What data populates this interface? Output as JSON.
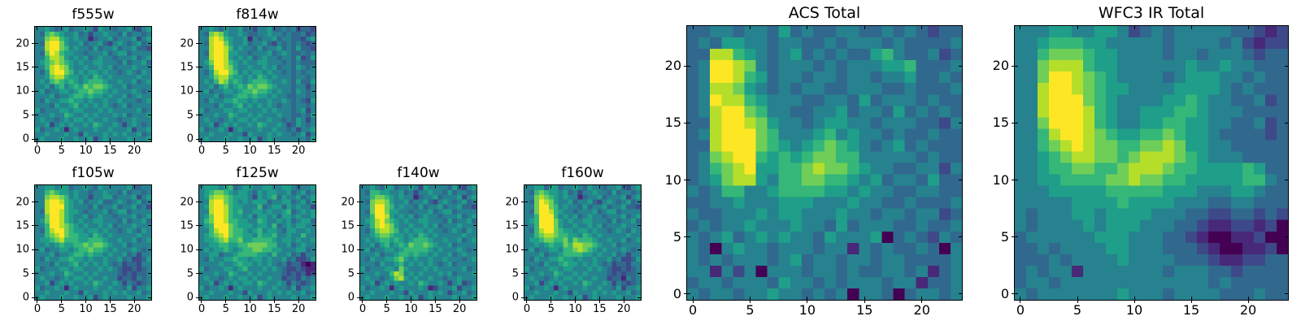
{
  "figure": {
    "background_color": "#ffffff",
    "frame_color": "#000000"
  },
  "chart_data": {
    "type": "heatmap",
    "colormap": "viridis",
    "colormap_colors": [
      "#440154",
      "#482878",
      "#3e4989",
      "#31688e",
      "#26828e",
      "#1f9e89",
      "#35b779",
      "#6ece58",
      "#b5de2b",
      "#fde725"
    ],
    "value_encoding": "each character 0-9 per cell indexes colormap_colors (relative surface brightness)",
    "grid_size": 24,
    "extent": [
      -0.5,
      23.5
    ],
    "xticks": [
      0,
      5,
      10,
      15,
      20
    ],
    "yticks": [
      0,
      5,
      10,
      15,
      20
    ],
    "grid": false,
    "panels": [
      {
        "id": "f555w",
        "title": "f555w",
        "rows": [
          "445434534454254434453245",
          "436765445342445443534434",
          "447886545441344534445245",
          "438997544534453245434534",
          "448997645443534453445332",
          "437986554434445345534444",
          "446887545453454434445345",
          "456787654544554443534453",
          "446898754454454534445444",
          "435899764545545443454354",
          "445788655454654544444544",
          "454676565456665445445345",
          "445356456576776544534444",
          "453445545667665454445434",
          "444534456656554544534544",
          "435445565545445445444345",
          "444354456454545434534444",
          "534445545544454544444534",
          "444544654454544454534445",
          "454434545545445443445444",
          "445245454454654454245434",
          "534454145444544544452445",
          "445444544254445454544534",
          "454445445445245444454445"
        ]
      },
      {
        "id": "f814w",
        "title": "f814w",
        "rows": [
          "445435445342445334342332",
          "437875445433445443433423",
          "448986544514344534433245",
          "438997544534453243434323",
          "448998645443534453435332",
          "438998554434445345433434",
          "448998545453454434435235",
          "457998654544554443434333",
          "446998754454454534435434",
          "435899764545545443434344",
          "445788655454654544434434",
          "454687565456665445435335",
          "445356456576776544434424",
          "453445545667665454435434",
          "444534456656554544334434",
          "435445565545445445434325",
          "444354456454545434434434",
          "534445545544454544434524",
          "444544654454544454433435",
          "454434545545445443435424",
          "445245454454654454235434",
          "534454145444544544342445",
          "445444544254445454434524",
          "454445445445245444444435"
        ]
      },
      {
        "id": "f105w",
        "title": "f105w",
        "rows": [
          "445545534454354444453344",
          "446765545443445443534434",
          "447887645442445534445245",
          "448998654534453345434534",
          "448999654443534453445342",
          "438998655434445345534444",
          "447998654453454434445345",
          "457998654544554443534453",
          "446998765454454534445444",
          "436899765545545443454354",
          "446789766554654544444544",
          "455678666556665445445345",
          "445456556676776544534444",
          "453445545667665454445434",
          "444534456656554544534244",
          "435445565545445445342235",
          "444354456454545434233244",
          "534445545544454543223234",
          "444544654454544443232334",
          "454434545545445442332434",
          "445245454454654454243234",
          "534454145444544544352445",
          "445444544254445454544534",
          "454445445445245444454445"
        ]
      },
      {
        "id": "f125w",
        "title": "f125w",
        "rows": [
          "455545634554455445543445",
          "456776545543545544534534",
          "457887655542545635445345",
          "448997654545553445534535",
          "458998655444634553545442",
          "448998656445545445634545",
          "457998655453554535545445",
          "467998665544654454534553",
          "456999765554554634545544",
          "446899766545645543554454",
          "456789766554655644544644",
          "455678667556666545545445",
          "445566556677776644534544",
          "454556545667766554445534",
          "445534456666554644534244",
          "435445565545545445342235",
          "444454456554545434233101",
          "534445545644454543223211",
          "444544654454544443232312",
          "454434545545445442332434",
          "445245454554654454243234",
          "534454145444544544352445",
          "445444544254445454544534",
          "454445445445245444454445"
        ]
      },
      {
        "id": "f140w",
        "title": "f140w",
        "rows": [
          "445435534454254444353245",
          "436655445342445443534434",
          "446776545441344534445245",
          "437887544534453245434534",
          "447997645443534453445332",
          "437997554434445345534444",
          "446998545453454434445345",
          "456897654544554443534453",
          "446898754454454534445444",
          "435788764545545443454354",
          "445677655454654544444544",
          "454566565456665445445345",
          "445356456576676544534444",
          "453445545666665454445434",
          "444534456656554544534544",
          "435445567545445445444345",
          "444354456454545434534444",
          "534445547544454544444534",
          "444544687454544454534445",
          "454434578545445443445444",
          "445245454454654454245234",
          "534454145444541244452445",
          "445444544254445454244534",
          "454445445445245444454445"
        ]
      },
      {
        "id": "f160w",
        "title": "f160w",
        "rows": [
          "445535534454354434453245",
          "436765545342445443534434",
          "447876545441344534445245",
          "437987544534453245434534",
          "447997645443534453445332",
          "437998654434445345534444",
          "446999645453454434445345",
          "456999754544554443534453",
          "446999754454454534445444",
          "436899765545545443454354",
          "446788766554654544444544",
          "455677667576665445445345",
          "445456557688776544534444",
          "453445546678765454445434",
          "444534456666554544534244",
          "435445565545445445342235",
          "444354456554545434233244",
          "534445545544454543223234",
          "444544654454544443232334",
          "454434545545445442331434",
          "445245454454654454243234",
          "534454145444544544352445",
          "445444544254445454544534",
          "454445445445245444454445"
        ]
      },
      {
        "id": "acs_total",
        "title": "ACS Total",
        "rows": [
          "334434435343344334343233",
          "343554434433434443433334",
          "338865434534343356433423",
          "349987434443434445563334",
          "349986534434434434453343",
          "348875434344334443343334",
          "349886544433443534443433",
          "348997644334453443534343",
          "338998754434554434443324",
          "348999764445645443433433",
          "338999765456765434534333",
          "347899656567766444443433",
          "346789556678776544334424",
          "345788546677665453443533",
          "434664456666554544334433",
          "334454445554445443343334",
          "433444545544454434434423",
          "343445444544353444334334",
          "434534545443544450343243",
          "430454434443441434334304",
          "434344434534434434433334",
          "441424044434434334434134",
          "344344435443434443441334",
          "434434454434340443034434"
        ]
      },
      {
        "id": "wfc3_ir_total",
        "title": "WFC3 IR Total",
        "rows": [
          "444554455423434444433212",
          "445666554444434444342122",
          "446777655444434434443233",
          "447888655444444544544333",
          "447998765444434555443433",
          "448998765544445555434333",
          "448999765444455654433423",
          "448999865445556654443333",
          "447999865445566554433423",
          "446899876556676554333323",
          "446789877667787554433333",
          "445678877678887654443333",
          "445667766788876655556533",
          "445566667787766555556643",
          "444555556666655544455433",
          "444445555655554443344333",
          "434445545555444332233232",
          "434444545554443321122120",
          "344444455544433210011200",
          "334344445544433321001120",
          "333434444544443332112233",
          "343441444444434443323333",
          "344344444444444443433333",
          "434444444544434444333433"
        ]
      }
    ]
  }
}
